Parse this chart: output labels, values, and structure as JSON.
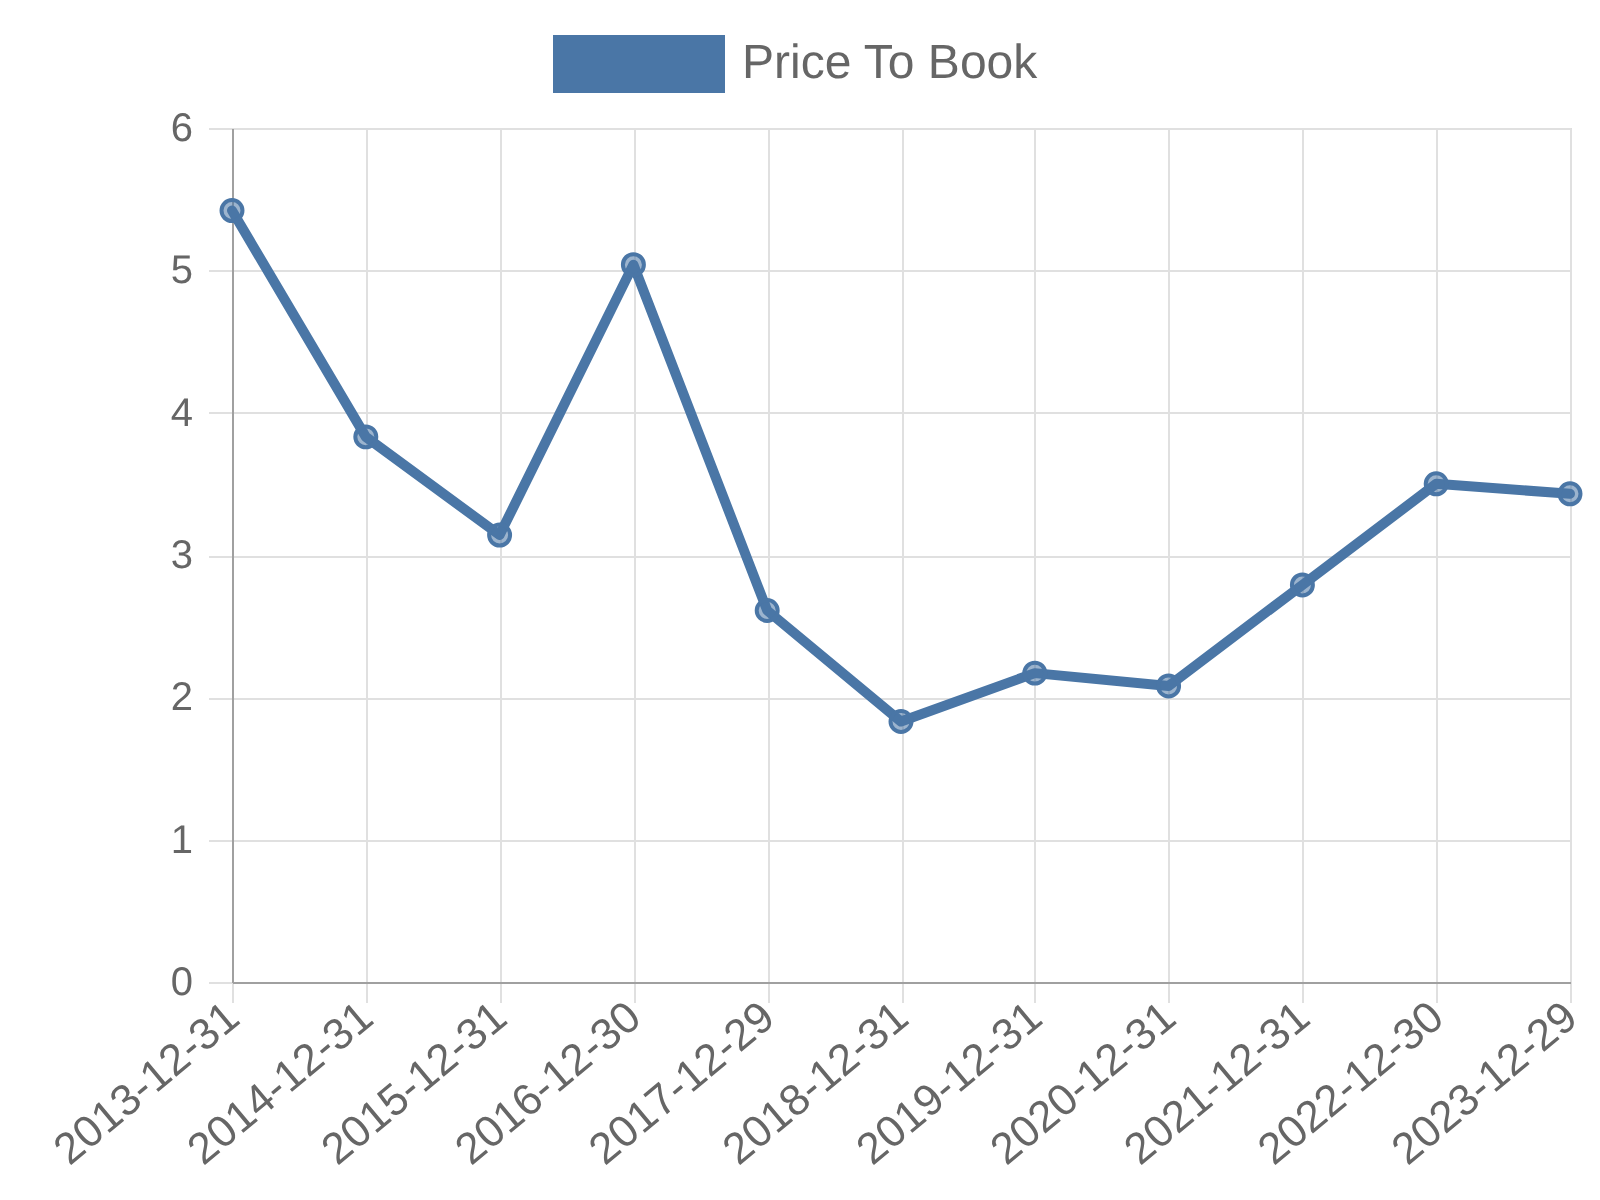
{
  "chart_data": {
    "type": "line",
    "categories": [
      "2013-12-31",
      "2014-12-31",
      "2015-12-31",
      "2016-12-30",
      "2017-12-29",
      "2018-12-31",
      "2019-12-31",
      "2020-12-31",
      "2021-12-31",
      "2022-12-30",
      "2023-12-29"
    ],
    "series": [
      {
        "name": "Price To Book",
        "color": "#4a76a6",
        "values": [
          5.42,
          3.83,
          3.14,
          5.04,
          2.61,
          1.83,
          2.17,
          2.08,
          2.79,
          3.5,
          3.43
        ]
      }
    ],
    "ylim": [
      0,
      6
    ],
    "yticks": [
      0,
      1,
      2,
      3,
      4,
      5,
      6
    ],
    "grid": true,
    "legend": "top",
    "marker": "circle",
    "line_style": "solid"
  }
}
